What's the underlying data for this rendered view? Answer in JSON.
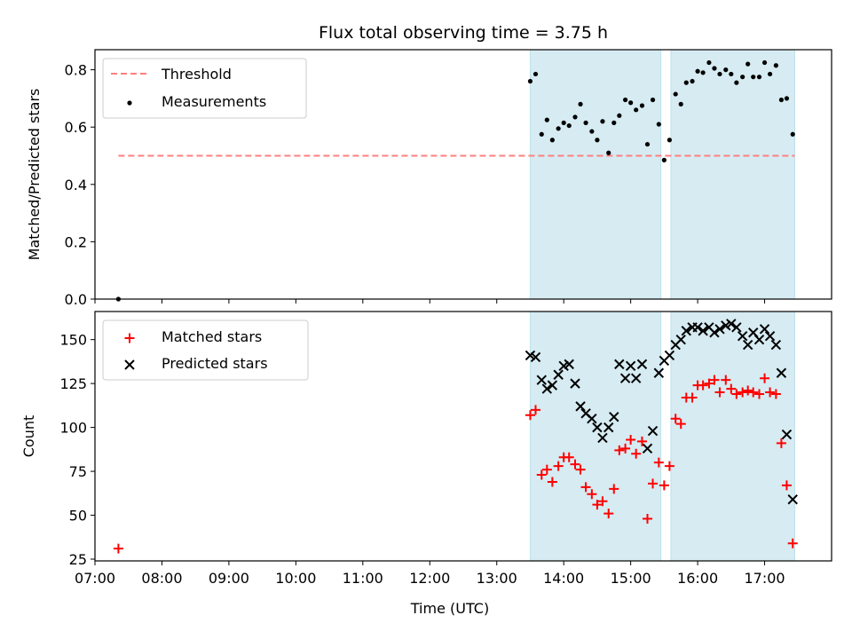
{
  "title": "Flux total observing time = 3.75 h",
  "chart_data": [
    {
      "type": "scatter",
      "ylabel": "Matched/Predicted stars",
      "ylim": [
        0,
        0.87
      ],
      "xlim": [
        7.0,
        18.0
      ],
      "yticks": [
        0.0,
        0.2,
        0.4,
        0.6,
        0.8
      ],
      "ytick_labels": [
        "0.0",
        "0.2",
        "0.4",
        "0.6",
        "0.8"
      ],
      "threshold": {
        "label": "Threshold",
        "value": 0.5,
        "x_start": 7.35,
        "x_end": 17.45,
        "color": "#ff7f7f"
      },
      "shaded_regions": [
        [
          13.5,
          15.45
        ],
        [
          15.6,
          17.45
        ]
      ],
      "series": [
        {
          "name": "Measurements",
          "color": "#000000",
          "x": [
            7.35,
            13.5,
            13.58,
            13.67,
            13.75,
            13.83,
            13.92,
            14.0,
            14.08,
            14.17,
            14.25,
            14.33,
            14.42,
            14.5,
            14.58,
            14.67,
            14.75,
            14.83,
            14.92,
            15.0,
            15.08,
            15.17,
            15.25,
            15.33,
            15.42,
            15.5,
            15.58,
            15.67,
            15.75,
            15.83,
            15.92,
            16.0,
            16.08,
            16.17,
            16.25,
            16.33,
            16.42,
            16.5,
            16.58,
            16.67,
            16.75,
            16.83,
            16.92,
            17.0,
            17.08,
            17.17,
            17.25,
            17.33,
            17.42
          ],
          "y": [
            0.0,
            0.76,
            0.785,
            0.575,
            0.625,
            0.555,
            0.595,
            0.615,
            0.605,
            0.635,
            0.68,
            0.615,
            0.585,
            0.555,
            0.62,
            0.51,
            0.615,
            0.64,
            0.695,
            0.685,
            0.66,
            0.675,
            0.54,
            0.695,
            0.61,
            0.485,
            0.555,
            0.715,
            0.68,
            0.755,
            0.76,
            0.795,
            0.79,
            0.825,
            0.805,
            0.785,
            0.8,
            0.785,
            0.755,
            0.775,
            0.82,
            0.775,
            0.775,
            0.825,
            0.785,
            0.815,
            0.695,
            0.7,
            0.575
          ]
        }
      ]
    },
    {
      "type": "scatter",
      "xlabel": "Time (UTC)",
      "ylabel": "Count",
      "ylim": [
        24,
        166
      ],
      "xlim": [
        7.0,
        18.0
      ],
      "yticks": [
        25,
        50,
        75,
        100,
        125,
        150
      ],
      "ytick_labels": [
        "25",
        "50",
        "75",
        "100",
        "125",
        "150"
      ],
      "xticks": [
        7,
        8,
        9,
        10,
        11,
        12,
        13,
        14,
        15,
        16,
        17
      ],
      "xtick_labels": [
        "07:00",
        "08:00",
        "09:00",
        "10:00",
        "11:00",
        "12:00",
        "13:00",
        "14:00",
        "15:00",
        "16:00",
        "17:00"
      ],
      "shaded_regions": [
        [
          13.5,
          15.45
        ],
        [
          15.6,
          17.45
        ]
      ],
      "series": [
        {
          "name": "Matched stars",
          "color": "#ff0000",
          "marker": "plus",
          "x": [
            7.35,
            13.5,
            13.58,
            13.67,
            13.75,
            13.83,
            13.92,
            14.0,
            14.08,
            14.17,
            14.25,
            14.33,
            14.42,
            14.5,
            14.58,
            14.67,
            14.75,
            14.83,
            14.92,
            15.0,
            15.08,
            15.17,
            15.25,
            15.33,
            15.42,
            15.5,
            15.58,
            15.67,
            15.75,
            15.83,
            15.92,
            16.0,
            16.08,
            16.17,
            16.25,
            16.33,
            16.42,
            16.5,
            16.58,
            16.67,
            16.75,
            16.83,
            16.92,
            17.0,
            17.08,
            17.17,
            17.25,
            17.33,
            17.42
          ],
          "y": [
            31,
            107,
            110,
            73,
            76,
            69,
            78,
            83,
            83,
            79,
            76,
            66,
            62,
            56,
            58,
            51,
            65,
            87,
            88,
            93,
            85,
            92,
            48,
            68,
            80,
            67,
            78,
            105,
            102,
            117,
            117,
            124,
            124,
            125,
            127,
            120,
            127,
            122,
            119,
            120,
            121,
            120,
            119,
            128,
            120,
            119,
            91,
            67,
            34
          ]
        },
        {
          "name": "Predicted stars",
          "color": "#000000",
          "marker": "x",
          "x": [
            13.5,
            13.58,
            13.67,
            13.75,
            13.83,
            13.92,
            14.0,
            14.08,
            14.17,
            14.25,
            14.33,
            14.42,
            14.5,
            14.58,
            14.67,
            14.75,
            14.83,
            14.92,
            15.0,
            15.08,
            15.17,
            15.25,
            15.33,
            15.42,
            15.5,
            15.58,
            15.67,
            15.75,
            15.83,
            15.92,
            16.0,
            16.08,
            16.17,
            16.25,
            16.33,
            16.42,
            16.5,
            16.58,
            16.67,
            16.75,
            16.83,
            16.92,
            17.0,
            17.08,
            17.17,
            17.25,
            17.33,
            17.42
          ],
          "y": [
            141,
            140,
            127,
            122,
            124,
            130,
            135,
            136,
            125,
            112,
            108,
            105,
            100,
            94,
            100,
            106,
            136,
            128,
            135,
            128,
            136,
            88,
            98,
            131,
            138,
            141,
            147,
            150,
            155,
            157,
            157,
            155,
            157,
            154,
            156,
            158,
            159,
            157,
            152,
            147,
            154,
            150,
            156,
            152,
            147,
            131,
            96,
            59
          ]
        }
      ]
    }
  ]
}
